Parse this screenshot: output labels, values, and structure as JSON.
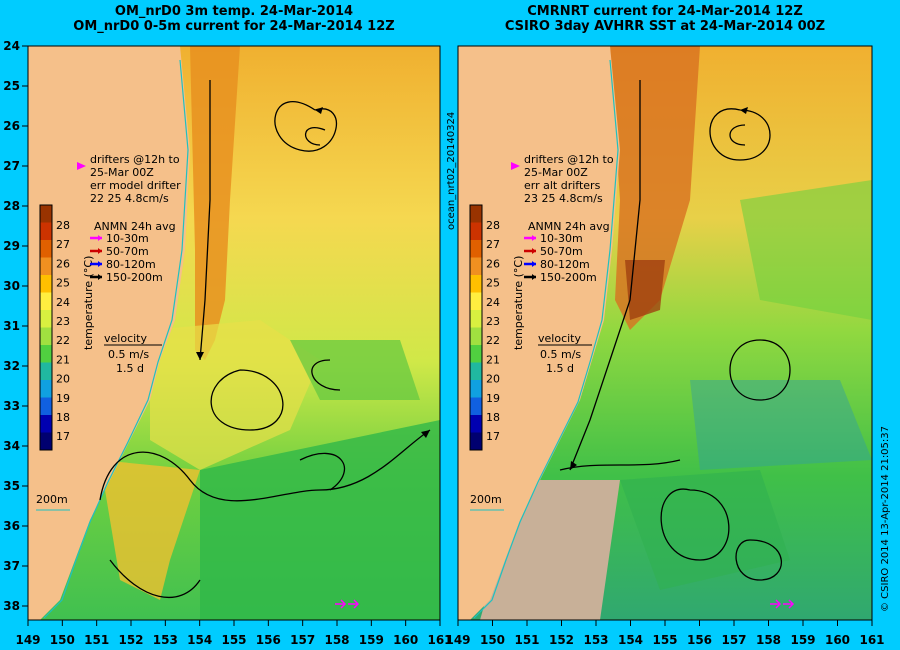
{
  "panels": [
    {
      "title_line1": "OM_nrD0 3m temp. 24-Mar-2014",
      "title_line2": "OM_nrD0 0-5m current for 24-Mar-2014 12Z",
      "drifter_text": [
        "drifters @12h to",
        "25-Mar 00Z",
        "err model drifter",
        "22 25 4.8cm/s"
      ]
    },
    {
      "title_line1": "CMRNRT current for 24-Mar-2014 12Z",
      "title_line2": "CSIRO 3day AVHRR SST at 24-Mar-2014 00Z",
      "drifter_text": [
        "drifters @12h to",
        "25-Mar 00Z",
        "err alt drifters",
        "23 25 4.8cm/s"
      ]
    }
  ],
  "legend": {
    "title": "ANMN 24h avg",
    "items": [
      {
        "label": "10-30m",
        "color": "#ff00ff"
      },
      {
        "label": "50-70m",
        "color": "#cc0000"
      },
      {
        "label": "80-120m",
        "color": "#0000ff"
      },
      {
        "label": "150-200m",
        "color": "#000000"
      }
    ],
    "velocity_label": "velocity",
    "velocity_value": "0.5 m/s",
    "velocity_time": "1.5 d"
  },
  "colorbar": {
    "label": "temperature (°C)",
    "ticks": [
      "28",
      "27",
      "26",
      "25",
      "24",
      "23",
      "22",
      "21",
      "20",
      "19",
      "18",
      "17"
    ],
    "colors": [
      "#993300",
      "#cc3300",
      "#e06000",
      "#f09020",
      "#ffc000",
      "#ffee40",
      "#d8f040",
      "#a0e040",
      "#50d040",
      "#20b8a0",
      "#10a0e0",
      "#1060e0",
      "#0000b0",
      "#000070"
    ]
  },
  "depth_label": "200m",
  "x_ticks": [
    "149",
    "150",
    "151",
    "152",
    "153",
    "154",
    "155",
    "156",
    "157",
    "158",
    "159",
    "160",
    "161"
  ],
  "y_ticks": [
    "24",
    "25",
    "26",
    "27",
    "28",
    "29",
    "30",
    "31",
    "32",
    "33",
    "34",
    "35",
    "36",
    "37",
    "38"
  ],
  "side_label": "ocean_nrt02_20140324",
  "credit": "© CSIRO 2014   13-Apr-2014 21:05:37",
  "colors": {
    "background": "#00ccff",
    "land": "#f5c08a",
    "cloud": "#c8b098"
  }
}
